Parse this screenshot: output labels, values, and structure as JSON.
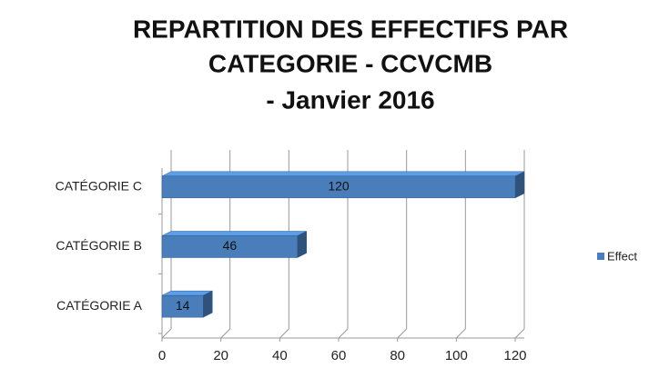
{
  "chart_data": {
    "type": "bar",
    "orientation": "horizontal",
    "three_d": true,
    "title_lines": [
      "REPARTITION DES EFFECTIFS PAR",
      "CATEGORIE - CCVCMB",
      "- Janvier 2016"
    ],
    "categories": [
      "CATÉGORIE A",
      "CATÉGORIE B",
      "CATÉGORIE C"
    ],
    "series": [
      {
        "name": "Effect",
        "color": "#4a7ebb",
        "values": [
          14,
          46,
          120
        ]
      }
    ],
    "xlim": [
      0,
      120
    ],
    "xticks": [
      0,
      20,
      40,
      60,
      80,
      100,
      120
    ],
    "grid": true,
    "legend": "right"
  }
}
